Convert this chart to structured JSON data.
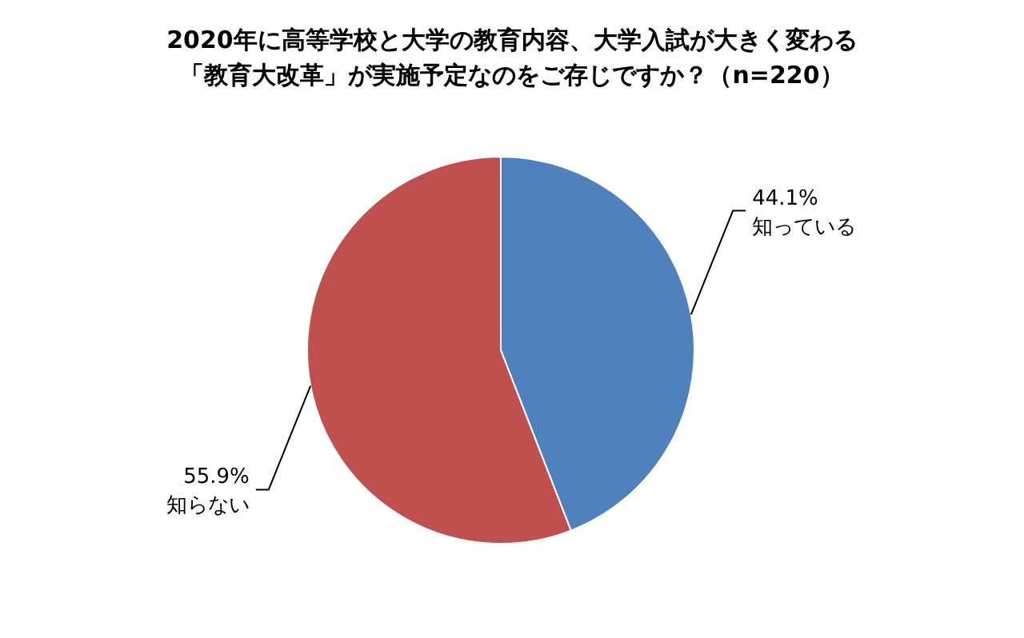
{
  "chart_data": {
    "type": "pie",
    "title": "2020年に高等学校と大学の教育内容、大学入試が大きく変わる",
    "subtitle": "「教育大改革」が実施予定なのをご存じですか？（n=220）",
    "categories": [
      "知っている",
      "知らない"
    ],
    "values": [
      44.1,
      55.9
    ],
    "colors": [
      "#4f81bd",
      "#c0504d"
    ],
    "value_labels": [
      "44.1%",
      "55.9%"
    ]
  }
}
